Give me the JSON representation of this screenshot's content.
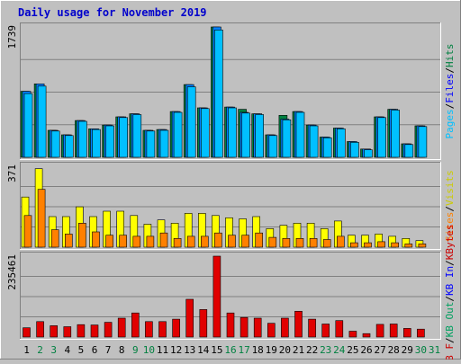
{
  "chart_data": {
    "type": "bar",
    "title": "Daily usage for November 2019",
    "colors": {
      "background": "#c0c0c0",
      "title": "#0000cc",
      "pages": "#00c0ff",
      "files": "#0080ff",
      "hits": "#008040",
      "visits": "#ffff00",
      "sites": "#ff8000",
      "kb_in": "#0000ff",
      "kb_out": "#00a060",
      "kb_f": "#e00000",
      "weekend_day_label": "#008040",
      "weekday_label": "#000000"
    },
    "days": [
      "1",
      "2",
      "3",
      "4",
      "5",
      "6",
      "7",
      "8",
      "9",
      "10",
      "11",
      "12",
      "13",
      "14",
      "15",
      "16",
      "17",
      "18",
      "19",
      "20",
      "21",
      "22",
      "23",
      "24",
      "25",
      "26",
      "27",
      "28",
      "29",
      "30",
      "31"
    ],
    "weekend_days": [
      "2",
      "3",
      "9",
      "10",
      "16",
      "17",
      "23",
      "24",
      "30",
      "31"
    ],
    "panels": [
      {
        "axis_max_label": "1739",
        "ymax": 1739,
        "legend": [
          {
            "text": "Hits",
            "color": "#008040"
          },
          {
            "text": "/",
            "color": "#000000"
          },
          {
            "text": "Files",
            "color": "#0000ff"
          },
          {
            "text": "/",
            "color": "#000000"
          },
          {
            "text": "Pages",
            "color": "#00c0ff"
          }
        ],
        "series": [
          {
            "name": "Hits",
            "color": "#008040",
            "values": [
              880,
              980,
              360,
              300,
              490,
              380,
              430,
              540,
              580,
              360,
              370,
              610,
              970,
              660,
              1739,
              670,
              640,
              580,
              300,
              560,
              610,
              430,
              270,
              390,
              210,
              110,
              540,
              640,
              180,
              420,
              null
            ]
          },
          {
            "name": "Files",
            "color": "#0080ff",
            "values": [
              880,
              980,
              360,
              300,
              490,
              380,
              430,
              540,
              580,
              360,
              370,
              610,
              970,
              660,
              1739,
              670,
              600,
              580,
              300,
              510,
              610,
              430,
              270,
              390,
              210,
              110,
              540,
              640,
              180,
              420,
              null
            ]
          },
          {
            "name": "Pages",
            "color": "#00c0ff",
            "values": [
              850,
              950,
              350,
              290,
              480,
              370,
              420,
              530,
              570,
              350,
              360,
              600,
              940,
              650,
              1700,
              660,
              590,
              570,
              290,
              500,
              600,
              420,
              260,
              380,
              200,
              100,
              530,
              630,
              170,
              410,
              null
            ]
          }
        ]
      },
      {
        "axis_max_label": "371",
        "ymax": 371,
        "legend": [
          {
            "text": "Visits",
            "color": "#cccc00"
          },
          {
            "text": "/",
            "color": "#000000"
          },
          {
            "text": "Sites",
            "color": "#ff8000"
          }
        ],
        "series": [
          {
            "name": "Visits",
            "color": "#ffff00",
            "values": [
              230,
              360,
              140,
              140,
              185,
              140,
              165,
              165,
              145,
              105,
              125,
              110,
              155,
              155,
              145,
              135,
              130,
              140,
              85,
              100,
              110,
              110,
              85,
              120,
              55,
              55,
              60,
              50,
              40,
              30,
              null
            ]
          },
          {
            "name": "Sites",
            "color": "#ff8000",
            "values": [
              145,
              265,
              80,
              60,
              110,
              70,
              55,
              55,
              50,
              50,
              65,
              40,
              50,
              50,
              65,
              55,
              55,
              65,
              45,
              40,
              40,
              40,
              35,
              50,
              20,
              20,
              25,
              20,
              15,
              15,
              null
            ]
          }
        ]
      },
      {
        "axis_max_label": "235461",
        "ymax": 235461,
        "legend": [
          {
            "text": "KBytes",
            "color": "#cc0000"
          },
          {
            "text": "/",
            "color": "#000000"
          },
          {
            "text": "KB In",
            "color": "#0000ff"
          },
          {
            "text": "/",
            "color": "#000000"
          },
          {
            "text": "KB Out",
            "color": "#00a060"
          },
          {
            "text": "/",
            "color": "#000000"
          },
          {
            "text": "kB F",
            "color": "#cc0000"
          }
        ],
        "series": [
          {
            "name": "KBytes",
            "color": "#e00000",
            "values": [
              27000,
              45000,
              33000,
              30000,
              36000,
              35000,
              43000,
              55000,
              70000,
              45000,
              45000,
              52000,
              110000,
              80000,
              235461,
              70000,
              57000,
              55000,
              40000,
              55000,
              75000,
              52000,
              38000,
              48000,
              17000,
              10000,
              37000,
              38000,
              25000,
              23000,
              null
            ]
          }
        ]
      }
    ],
    "grid": true
  }
}
